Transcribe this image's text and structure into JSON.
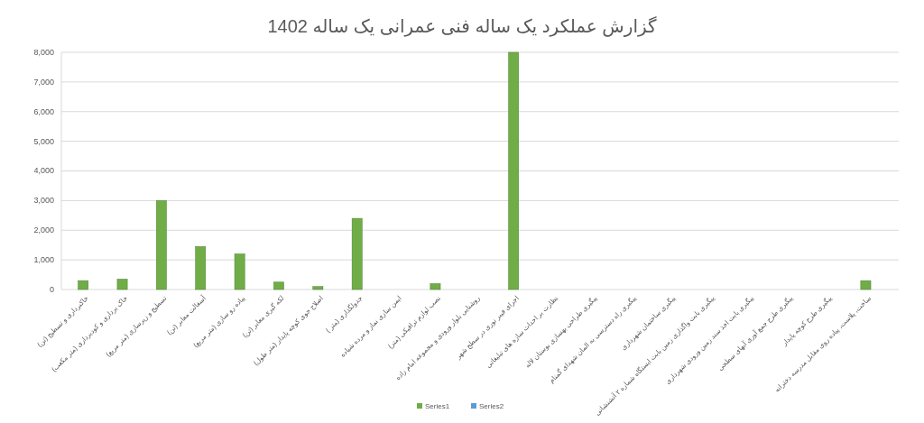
{
  "chart_data": {
    "type": "bar",
    "title": "گزارش عملکرد یک ساله فنی عمرانی یک ساله 1402",
    "categories": [
      "خاکبرداری و تسطیح (تن)",
      "خاک برداری و کودبرداری (متر مکعب)",
      "تسطیح و زیرسازی (متر مربع)",
      "آسفالت معابر (تن)",
      "پیاده رو سازی (متر مربع)",
      "لکه گیری معابر (تن)",
      "اصلاح جوی کوچه پایدار (متر طول)",
      "جدولگذاری (متر )",
      "ایمن سازی نماز و مرده شیاده",
      "نصب لوازم ترافیکی (متر)",
      "روشنایی بلوار ورودی و مجموعه امام زاده",
      "اجرای فیبر نوری در سطح شهر",
      "نظارت بر احداث سازه های تبلیغاتی",
      "پیگیری طراحی بهسازی بوستان لاله",
      "پیگیری راه دسترسی به المان شهدای گمنام",
      "پیگیری ساختمان شهرداری",
      "پیگیری بابت واگذاری زمین بابت ایستگاه شماره ۲ آتشنشانی",
      "پیگیری بابت اخذ سند زمین ورودی شهرداری",
      "پیگیری طرح جمع آوری آبهای سطحی",
      "پیگیری طرح کوچه پایدار",
      "ساخت، پلاست، پیاده روی مقابل مدرسه دخترانه"
    ],
    "series": [
      {
        "name": "Series1",
        "color": "#70ad47",
        "values": [
          300,
          350,
          3000,
          1450,
          1200,
          250,
          100,
          2400,
          0,
          200,
          0,
          8000,
          0,
          0,
          0,
          0,
          0,
          0,
          0,
          0,
          300
        ]
      },
      {
        "name": "Series2",
        "color": "#5b9bd5",
        "values": [
          null,
          null,
          null,
          null,
          null,
          null,
          null,
          null,
          null,
          null,
          null,
          null,
          null,
          null,
          null,
          null,
          null,
          null,
          null,
          null,
          null
        ]
      }
    ],
    "ylim": [
      0,
      8000
    ],
    "yticks": [
      {
        "value": 0,
        "label": "0"
      },
      {
        "value": 1000,
        "label": "1,000"
      },
      {
        "value": 2000,
        "label": "2,000"
      },
      {
        "value": 3000,
        "label": "3,000"
      },
      {
        "value": 4000,
        "label": "4,000"
      },
      {
        "value": 5000,
        "label": "5,000"
      },
      {
        "value": 6000,
        "label": "6,000"
      },
      {
        "value": 7000,
        "label": "7,000"
      },
      {
        "value": 8000,
        "label": "8,000"
      }
    ],
    "grid": "y",
    "legend": "bottom"
  }
}
